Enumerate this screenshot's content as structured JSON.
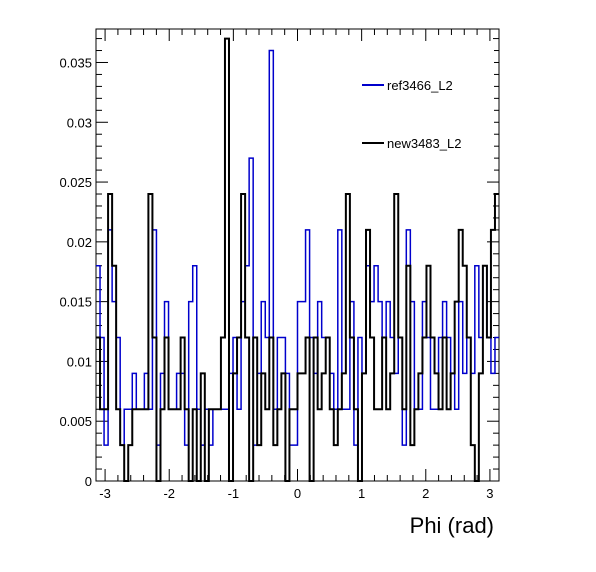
{
  "chart_data": {
    "type": "line",
    "style": "histogram-step",
    "xlabel": "Phi (rad)",
    "ylabel": "",
    "xlim": [
      -3.1416,
      3.1416
    ],
    "ylim": [
      0,
      0.0378
    ],
    "bins": 100,
    "grid": false,
    "legend_position": "top-right",
    "x_ticks": [
      -3,
      -2,
      -1,
      0,
      1,
      2,
      3
    ],
    "y_ticks": [
      0,
      0.005,
      0.01,
      0.015,
      0.02,
      0.025,
      0.03,
      0.035
    ],
    "x_tick_labels": [
      "-3",
      "-2",
      "-1",
      "0",
      "1",
      "2",
      "3"
    ],
    "y_tick_labels": [
      "0",
      "0.005",
      "0.01",
      "0.015",
      "0.02",
      "0.025",
      "0.03",
      "0.035"
    ],
    "series": [
      {
        "name": "ref3466_L2",
        "color": "#0000cc",
        "values": [
          0.018,
          0.012,
          0.003,
          0.021,
          0.015,
          0.012,
          0.003,
          0.006,
          0.006,
          0.009,
          0.006,
          0.006,
          0.009,
          0.006,
          0.021,
          0.003,
          0.009,
          0.015,
          0.006,
          0.006,
          0.009,
          0.009,
          0.003,
          0.015,
          0.018,
          0.006,
          0.003,
          0.006,
          0.003,
          0.006,
          0.006,
          0.006,
          0.006,
          0.009,
          0.012,
          0.006,
          0.015,
          0.018,
          0.027,
          0.003,
          0.009,
          0.015,
          0.012,
          0.036,
          0.006,
          0.012,
          0.012,
          0.009,
          0.003,
          0.003,
          0.015,
          0.015,
          0.021,
          0.012,
          0.009,
          0.015,
          0.012,
          0.012,
          0.009,
          0.006,
          0.021,
          0.006,
          0.006,
          0.015,
          0.003,
          0.012,
          0.009,
          0.018,
          0.015,
          0.018,
          0.015,
          0.012,
          0.015,
          0.012,
          0.009,
          0.012,
          0.003,
          0.021,
          0.015,
          0.006,
          0.006,
          0.015,
          0.012,
          0.006,
          0.006,
          0.012,
          0.015,
          0.012,
          0.009,
          0.006,
          0.015,
          0.009,
          0.012,
          0.009,
          0.018,
          0.012,
          0.018,
          0.012,
          0.009,
          0.012
        ]
      },
      {
        "name": "new3483_L2",
        "color": "#000000",
        "values": [
          0.012,
          0.006,
          0.006,
          0.024,
          0.018,
          0.006,
          0.003,
          0.0,
          0.003,
          0.006,
          0.006,
          0.006,
          0.006,
          0.024,
          0.012,
          0.0,
          0.006,
          0.012,
          0.006,
          0.006,
          0.006,
          0.012,
          0.006,
          0.0,
          0.006,
          0.0,
          0.009,
          0.0,
          0.006,
          0.006,
          0.006,
          0.012,
          0.037,
          0.0,
          0.009,
          0.012,
          0.024,
          0.012,
          0.0,
          0.012,
          0.003,
          0.009,
          0.006,
          0.012,
          0.003,
          0.006,
          0.009,
          0.0,
          0.006,
          0.006,
          0.009,
          0.009,
          0.012,
          0.0,
          0.012,
          0.006,
          0.009,
          0.012,
          0.006,
          0.003,
          0.006,
          0.009,
          0.024,
          0.012,
          0.006,
          0.0,
          0.009,
          0.021,
          0.012,
          0.006,
          0.006,
          0.012,
          0.006,
          0.009,
          0.024,
          0.012,
          0.006,
          0.018,
          0.003,
          0.006,
          0.009,
          0.012,
          0.018,
          0.012,
          0.009,
          0.006,
          0.012,
          0.006,
          0.009,
          0.015,
          0.021,
          0.018,
          0.012,
          0.003,
          0.0,
          0.009,
          0.018,
          0.012,
          0.021,
          0.024
        ]
      }
    ]
  }
}
